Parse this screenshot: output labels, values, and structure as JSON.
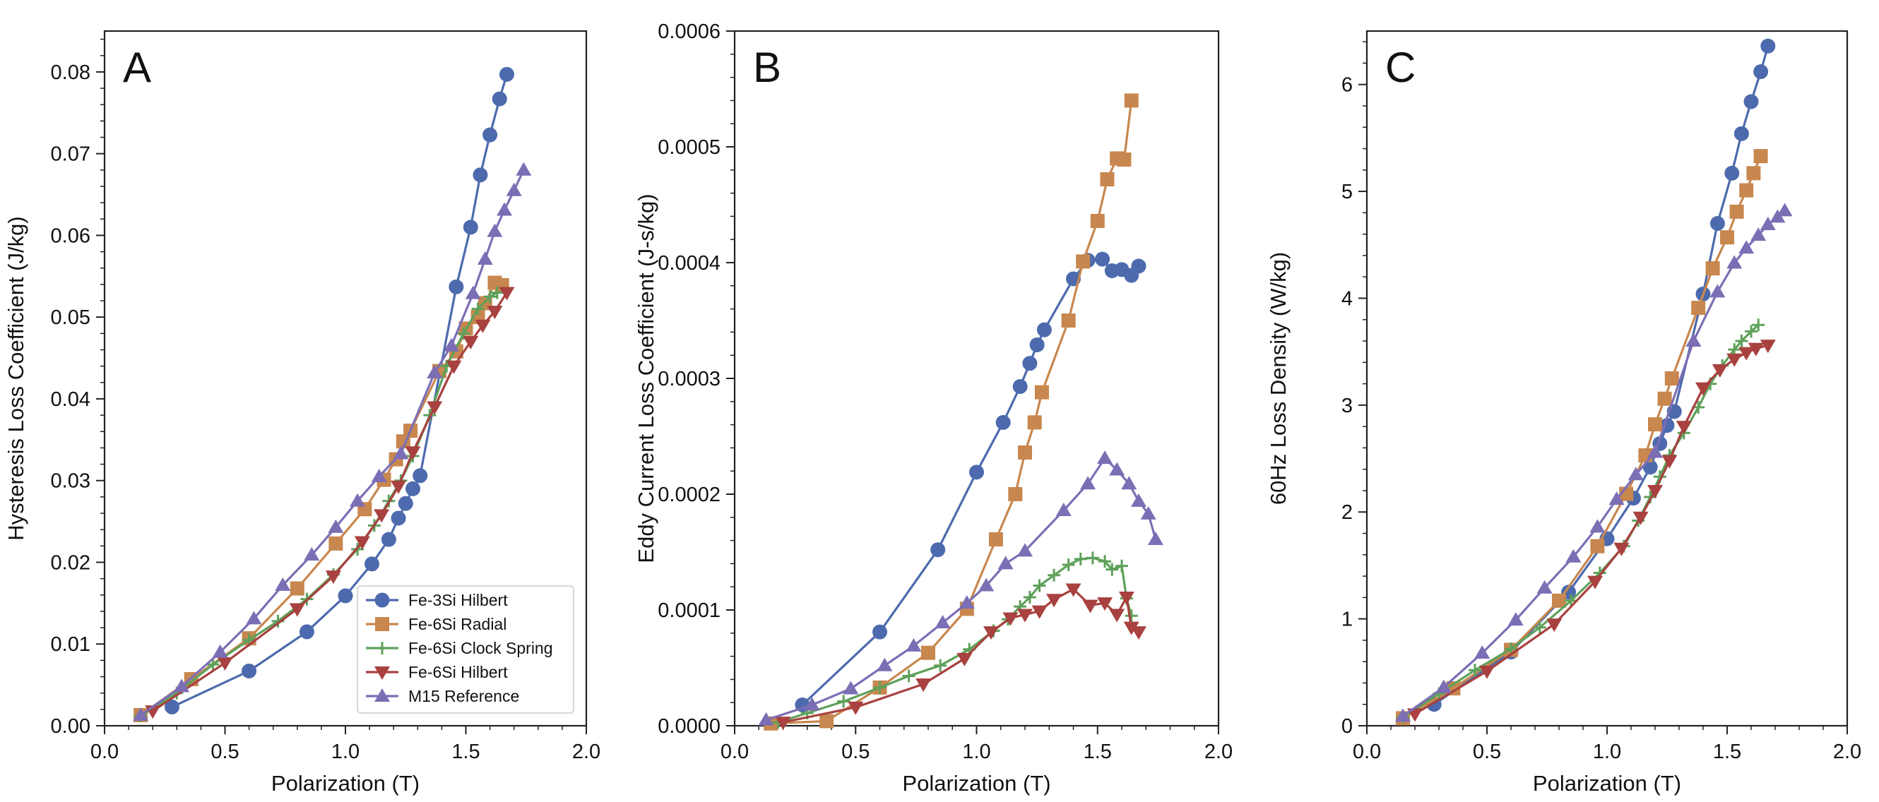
{
  "colors": {
    "Fe-3Si Hilbert": "#4c6aad",
    "Fe-6Si Radial": "#c8874e",
    "Fe-6Si Clock Spring": "#5ea15a",
    "Fe-6Si Hilbert": "#a8413f",
    "M15 Reference": "#7c6eb5"
  },
  "markers": {
    "Fe-3Si Hilbert": "circle",
    "Fe-6Si Radial": "square",
    "Fe-6Si Clock Spring": "plus",
    "Fe-6Si Hilbert": "triangle-down",
    "M15 Reference": "triangle-up"
  },
  "legend": {
    "entries": [
      "Fe-3Si Hilbert",
      "Fe-6Si Radial",
      "Fe-6Si Clock Spring",
      "Fe-6Si Hilbert",
      "M15 Reference"
    ]
  },
  "chart_data": [
    {
      "type": "line",
      "panel_label": "A",
      "xlabel": "Polarization (T)",
      "ylabel": "Hysteresis Loss Coefficient (J/kg)",
      "xlim": [
        0.0,
        2.0
      ],
      "ylim": [
        0.0,
        0.085
      ],
      "xticks": [
        "0.0",
        "0.5",
        "1.0",
        "1.5",
        "2.0"
      ],
      "yticks": [
        "0.00",
        "0.01",
        "0.02",
        "0.03",
        "0.04",
        "0.05",
        "0.06",
        "0.07",
        "0.08"
      ],
      "legend_position": "lower-right",
      "grid": false,
      "series": [
        {
          "name": "Fe-3Si Hilbert",
          "x": [
            0.28,
            0.6,
            0.84,
            1.0,
            1.11,
            1.18,
            1.22,
            1.25,
            1.28,
            1.31,
            1.46,
            1.52,
            1.56,
            1.6,
            1.64,
            1.67
          ],
          "y": [
            0.0023,
            0.0067,
            0.0115,
            0.0159,
            0.0198,
            0.0228,
            0.0254,
            0.0272,
            0.029,
            0.0306,
            0.0537,
            0.061,
            0.0674,
            0.0723,
            0.0767,
            0.0797
          ]
        },
        {
          "name": "Fe-6Si Radial",
          "x": [
            0.15,
            0.36,
            0.6,
            0.8,
            0.96,
            1.08,
            1.16,
            1.21,
            1.24,
            1.27,
            1.39,
            1.46,
            1.5,
            1.55,
            1.58,
            1.62,
            1.65
          ],
          "y": [
            0.0013,
            0.0057,
            0.0107,
            0.0168,
            0.0223,
            0.0265,
            0.0301,
            0.0326,
            0.0348,
            0.0361,
            0.0434,
            0.0458,
            0.0486,
            0.05,
            0.0517,
            0.0542,
            0.0539
          ]
        },
        {
          "name": "Fe-6Si Clock Spring",
          "x": [
            0.15,
            0.3,
            0.45,
            0.6,
            0.72,
            0.84,
            0.95,
            1.05,
            1.12,
            1.18,
            1.23,
            1.28,
            1.35,
            1.42,
            1.49,
            1.55,
            1.6,
            1.63
          ],
          "y": [
            0.0012,
            0.004,
            0.0075,
            0.0105,
            0.0128,
            0.0155,
            0.0185,
            0.0216,
            0.0245,
            0.0275,
            0.03,
            0.033,
            0.038,
            0.044,
            0.048,
            0.051,
            0.0525,
            0.053
          ]
        },
        {
          "name": "Fe-6Si Hilbert",
          "x": [
            0.2,
            0.5,
            0.8,
            0.95,
            1.07,
            1.15,
            1.22,
            1.28,
            1.37,
            1.45,
            1.52,
            1.57,
            1.62,
            1.67
          ],
          "y": [
            0.0018,
            0.0077,
            0.0143,
            0.0183,
            0.0225,
            0.0258,
            0.0293,
            0.0335,
            0.039,
            0.044,
            0.047,
            0.049,
            0.0507,
            0.053
          ]
        },
        {
          "name": "M15 Reference",
          "x": [
            0.15,
            0.32,
            0.48,
            0.62,
            0.74,
            0.86,
            0.96,
            1.05,
            1.14,
            1.23,
            1.37,
            1.44,
            1.53,
            1.58,
            1.62,
            1.66,
            1.7,
            1.74
          ],
          "y": [
            0.0013,
            0.0048,
            0.009,
            0.0131,
            0.0172,
            0.0209,
            0.0243,
            0.0275,
            0.0305,
            0.0333,
            0.0432,
            0.0465,
            0.0529,
            0.0571,
            0.0605,
            0.0631,
            0.0655,
            0.068
          ]
        }
      ]
    },
    {
      "type": "line",
      "panel_label": "B",
      "xlabel": "Polarization (T)",
      "ylabel": "Eddy Current Loss Coefficient (J-s/kg)",
      "xlim": [
        0.0,
        2.0
      ],
      "ylim": [
        0.0,
        0.0006
      ],
      "xticks": [
        "0.0",
        "0.5",
        "1.0",
        "1.5",
        "2.0"
      ],
      "yticks": [
        "0.0000",
        "0.0001",
        "0.0002",
        "0.0003",
        "0.0004",
        "0.0005",
        "0.0006"
      ],
      "grid": false,
      "series": [
        {
          "name": "Fe-3Si Hilbert",
          "x": [
            0.28,
            0.6,
            0.84,
            1.0,
            1.11,
            1.18,
            1.22,
            1.25,
            1.28,
            1.4,
            1.46,
            1.52,
            1.56,
            1.6,
            1.64,
            1.67
          ],
          "y": [
            1.8e-05,
            8.1e-05,
            0.000152,
            0.000219,
            0.000262,
            0.000293,
            0.000313,
            0.000329,
            0.000342,
            0.000386,
            0.000402,
            0.000403,
            0.000393,
            0.000394,
            0.000389,
            0.000397
          ]
        },
        {
          "name": "Fe-6Si Radial",
          "x": [
            0.15,
            0.38,
            0.6,
            0.8,
            0.96,
            1.08,
            1.16,
            1.2,
            1.24,
            1.27,
            1.38,
            1.44,
            1.5,
            1.54,
            1.58,
            1.61,
            1.64
          ],
          "y": [
            2e-06,
            4e-06,
            3.3e-05,
            6.3e-05,
            0.000101,
            0.000161,
            0.0002,
            0.000236,
            0.000262,
            0.000288,
            0.00035,
            0.000401,
            0.000436,
            0.000472,
            0.00049,
            0.000489,
            0.00054
          ]
        },
        {
          "name": "Fe-6Si Clock Spring",
          "x": [
            0.18,
            0.3,
            0.45,
            0.6,
            0.72,
            0.85,
            0.97,
            1.07,
            1.13,
            1.18,
            1.22,
            1.26,
            1.32,
            1.38,
            1.43,
            1.48,
            1.53,
            1.56,
            1.6,
            1.62,
            1.64
          ],
          "y": [
            3e-06,
            1.1e-05,
            2.1e-05,
            3.3e-05,
            4.3e-05,
            5.2e-05,
            6.6e-05,
            8.2e-05,
            9.2e-05,
            0.000103,
            0.000111,
            0.000121,
            0.00013,
            0.000139,
            0.000144,
            0.000145,
            0.000142,
            0.000135,
            0.000138,
            0.00011,
            9.5e-05
          ]
        },
        {
          "name": "Fe-6Si Hilbert",
          "x": [
            0.2,
            0.5,
            0.78,
            0.95,
            1.06,
            1.14,
            1.2,
            1.26,
            1.32,
            1.4,
            1.47,
            1.53,
            1.58,
            1.62,
            1.64,
            1.67
          ],
          "y": [
            3e-06,
            1.6e-05,
            3.6e-05,
            5.8e-05,
            8.1e-05,
            9.3e-05,
            9.6e-05,
            9.9e-05,
            0.000109,
            0.000118,
            0.000104,
            0.000106,
            9.6e-05,
            0.000111,
            8.5e-05,
            8.1e-05
          ]
        },
        {
          "name": "M15 Reference",
          "x": [
            0.13,
            0.32,
            0.48,
            0.62,
            0.74,
            0.86,
            0.96,
            1.04,
            1.12,
            1.2,
            1.36,
            1.46,
            1.53,
            1.58,
            1.63,
            1.67,
            1.71,
            1.74
          ],
          "y": [
            5e-06,
            1.8e-05,
            3.2e-05,
            5.2e-05,
            6.9e-05,
            8.9e-05,
            0.000106,
            0.000121,
            0.00014,
            0.000151,
            0.000186,
            0.000209,
            0.000231,
            0.000221,
            0.000209,
            0.000194,
            0.000183,
            0.000161
          ]
        }
      ]
    },
    {
      "type": "line",
      "panel_label": "C",
      "xlabel": "Polarization (T)",
      "ylabel": "60Hz Loss Density (W/kg)",
      "xlim": [
        0.0,
        2.0
      ],
      "ylim": [
        0.0,
        6.5
      ],
      "xticks": [
        "0.0",
        "0.5",
        "1.0",
        "1.5",
        "2.0"
      ],
      "yticks": [
        "0",
        "1",
        "2",
        "3",
        "4",
        "5",
        "6"
      ],
      "grid": false,
      "series": [
        {
          "name": "Fe-3Si Hilbert",
          "x": [
            0.28,
            0.6,
            0.84,
            1.0,
            1.11,
            1.18,
            1.22,
            1.25,
            1.28,
            1.4,
            1.46,
            1.52,
            1.56,
            1.6,
            1.64,
            1.67
          ],
          "y": [
            0.2,
            0.69,
            1.25,
            1.75,
            2.13,
            2.42,
            2.64,
            2.81,
            2.94,
            4.04,
            4.7,
            5.17,
            5.54,
            5.84,
            6.12,
            6.36
          ]
        },
        {
          "name": "Fe-6Si Radial",
          "x": [
            0.15,
            0.36,
            0.6,
            0.8,
            0.96,
            1.08,
            1.16,
            1.2,
            1.24,
            1.27,
            1.38,
            1.44,
            1.5,
            1.54,
            1.58,
            1.61,
            1.64
          ],
          "y": [
            0.07,
            0.35,
            0.71,
            1.17,
            1.68,
            2.17,
            2.53,
            2.82,
            3.06,
            3.25,
            3.91,
            4.28,
            4.57,
            4.81,
            5.01,
            5.17,
            5.33
          ]
        },
        {
          "name": "Fe-6Si Clock Spring",
          "x": [
            0.15,
            0.3,
            0.45,
            0.6,
            0.72,
            0.85,
            0.97,
            1.07,
            1.13,
            1.18,
            1.22,
            1.26,
            1.32,
            1.38,
            1.43,
            1.48,
            1.53,
            1.56,
            1.6,
            1.63
          ],
          "y": [
            0.08,
            0.3,
            0.52,
            0.72,
            0.92,
            1.17,
            1.43,
            1.68,
            1.92,
            2.14,
            2.33,
            2.53,
            2.74,
            2.98,
            3.2,
            3.37,
            3.52,
            3.6,
            3.69,
            3.75
          ]
        },
        {
          "name": "Fe-6Si Hilbert",
          "x": [
            0.2,
            0.5,
            0.78,
            0.95,
            1.06,
            1.14,
            1.2,
            1.26,
            1.32,
            1.4,
            1.47,
            1.53,
            1.58,
            1.62,
            1.67
          ],
          "y": [
            0.11,
            0.51,
            0.95,
            1.35,
            1.66,
            1.95,
            2.2,
            2.48,
            2.8,
            3.16,
            3.33,
            3.43,
            3.49,
            3.53,
            3.56
          ]
        },
        {
          "name": "M15 Reference",
          "x": [
            0.15,
            0.32,
            0.48,
            0.62,
            0.74,
            0.86,
            0.96,
            1.04,
            1.12,
            1.2,
            1.36,
            1.46,
            1.53,
            1.58,
            1.63,
            1.67,
            1.71,
            1.74
          ],
          "y": [
            0.09,
            0.36,
            0.68,
            0.99,
            1.29,
            1.58,
            1.86,
            2.12,
            2.35,
            2.56,
            3.6,
            4.06,
            4.33,
            4.47,
            4.59,
            4.69,
            4.76,
            4.82
          ]
        }
      ]
    }
  ]
}
